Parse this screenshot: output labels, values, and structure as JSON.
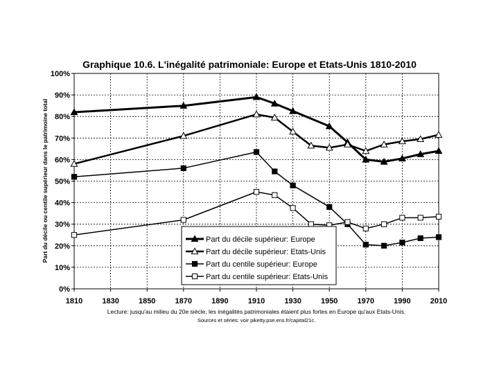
{
  "chart_data": {
    "type": "line",
    "title": "Graphique 10.6. L'inégalité patrimoniale: Europe et Etats-Unis 1810-2010",
    "ylabel": "Part du décile ou centile supérieur dans le patrimoine total",
    "xlabel": "",
    "xlim": [
      1810,
      2010
    ],
    "ylim": [
      0,
      100
    ],
    "x_ticks": [
      "1810",
      "1830",
      "1850",
      "1870",
      "1890",
      "1910",
      "1930",
      "1950",
      "1970",
      "1990",
      "2010"
    ],
    "y_ticks": [
      "0%",
      "10%",
      "20%",
      "30%",
      "40%",
      "50%",
      "60%",
      "70%",
      "80%",
      "90%",
      "100%"
    ],
    "grid": true,
    "legend_position": "bottom-center",
    "series": [
      {
        "name": "Part du décile supérieur: Europe",
        "marker": "triangle-filled",
        "line_width": 3,
        "color": "#000000",
        "x": [
          1810,
          1870,
          1910,
          1920,
          1930,
          1950,
          1960,
          1970,
          1980,
          1990,
          2000,
          2010
        ],
        "values": [
          82,
          85,
          89,
          86,
          82.5,
          75.5,
          68,
          60,
          59,
          60.5,
          62.5,
          64
        ]
      },
      {
        "name": "Part du décile supérieur: Etats-Unis",
        "marker": "triangle-open",
        "line_width": 2.5,
        "color": "#000000",
        "x": [
          1810,
          1870,
          1910,
          1920,
          1930,
          1940,
          1950,
          1960,
          1970,
          1980,
          1990,
          2000,
          2010
        ],
        "values": [
          58,
          71,
          81,
          79.5,
          73,
          66.5,
          65.5,
          67,
          64,
          67,
          68.5,
          69.5,
          71.5
        ]
      },
      {
        "name": "Part du centile supérieur: Europe",
        "marker": "square-filled",
        "line_width": 1.5,
        "color": "#000000",
        "x": [
          1810,
          1870,
          1910,
          1920,
          1930,
          1950,
          1960,
          1970,
          1980,
          1990,
          2000,
          2010
        ],
        "values": [
          52,
          56,
          63.5,
          54.5,
          48,
          38,
          30,
          20.5,
          20,
          21.5,
          23.5,
          24
        ]
      },
      {
        "name": "Part du centile supérieur: Etats-Unis",
        "marker": "square-open",
        "line_width": 1.5,
        "color": "#000000",
        "x": [
          1810,
          1870,
          1910,
          1920,
          1930,
          1940,
          1950,
          1960,
          1970,
          1980,
          1990,
          2000,
          2010
        ],
        "values": [
          25,
          32,
          45,
          43.5,
          37.5,
          30,
          29.5,
          31,
          28,
          30,
          33,
          33,
          33.5
        ]
      }
    ],
    "annotations": [
      "Lecture: jusqu'au milieu du 20e siècle, les inégalités patrimoniales étaient plus fortes en Europe qu'aux Etats-Unis.",
      "Sources et séries: voir piketty.pse.ens.fr/capital21c."
    ]
  }
}
